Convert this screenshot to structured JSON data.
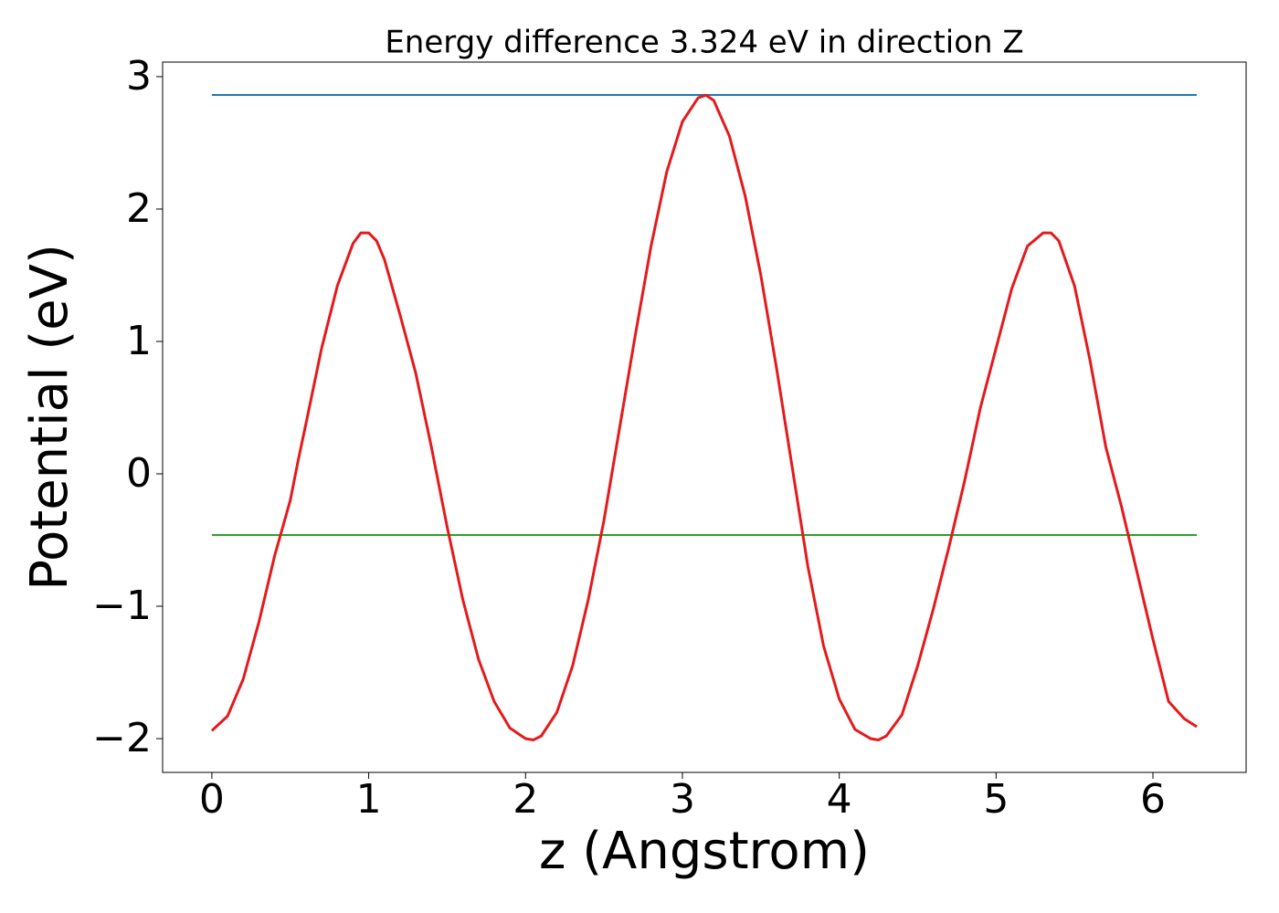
{
  "chart_data": {
    "type": "line",
    "title": "Energy difference 3.324 eV in direction Z",
    "x_label": "z (Angstrom)",
    "y_label": "Potential (eV)",
    "xlim": [
      -0.314,
      6.594
    ],
    "ylim": [
      -2.255,
      3.11
    ],
    "xticks": [
      0,
      1,
      2,
      3,
      4,
      5,
      6
    ],
    "yticks": [
      {
        "value": -2,
        "label": "−2"
      },
      {
        "value": -1,
        "label": "−1"
      },
      0,
      1,
      2,
      3
    ],
    "grid": false,
    "x": [
      0,
      0.1,
      0.2,
      0.3,
      0.4,
      0.5,
      0.55,
      0.6,
      0.7,
      0.8,
      0.9,
      0.95,
      1.0,
      1.05,
      1.1,
      1.2,
      1.3,
      1.4,
      1.5,
      1.6,
      1.7,
      1.8,
      1.9,
      2.0,
      2.05,
      2.1,
      2.2,
      2.3,
      2.4,
      2.5,
      2.6,
      2.7,
      2.8,
      2.9,
      3.0,
      3.1,
      3.15,
      3.2,
      3.3,
      3.4,
      3.5,
      3.6,
      3.7,
      3.8,
      3.9,
      4.0,
      4.1,
      4.2,
      4.25,
      4.3,
      4.4,
      4.5,
      4.6,
      4.7,
      4.8,
      4.9,
      5.0,
      5.1,
      5.2,
      5.3,
      5.35,
      5.4,
      5.5,
      5.6,
      5.7,
      5.8,
      5.9,
      6.0,
      6.1,
      6.2,
      6.28
    ],
    "series": [
      {
        "color": "#e41a1c",
        "values": [
          -1.94,
          -1.83,
          -1.55,
          -1.12,
          -0.62,
          -0.2,
          0.1,
          0.38,
          0.95,
          1.42,
          1.74,
          1.82,
          1.82,
          1.76,
          1.62,
          1.2,
          0.76,
          0.2,
          -0.4,
          -0.95,
          -1.4,
          -1.72,
          -1.92,
          -2.0,
          -2.01,
          -1.98,
          -1.8,
          -1.45,
          -0.95,
          -0.35,
          0.35,
          1.05,
          1.72,
          2.28,
          2.66,
          2.84,
          2.86,
          2.82,
          2.55,
          2.1,
          1.5,
          0.8,
          0.05,
          -0.7,
          -1.3,
          -1.7,
          -1.93,
          -2.0,
          -2.01,
          -1.98,
          -1.82,
          -1.45,
          -1.02,
          -0.55,
          -0.05,
          0.5,
          0.95,
          1.4,
          1.72,
          1.82,
          1.82,
          1.76,
          1.42,
          0.85,
          0.2,
          -0.25,
          -0.75,
          -1.25,
          -1.72,
          -1.85,
          -1.91
        ]
      }
    ],
    "hlines": [
      {
        "y": 2.862,
        "xmin": 0,
        "xmax": 6.28,
        "color": "#1f77b4"
      },
      {
        "y": -0.462,
        "xmin": 0,
        "xmax": 6.28,
        "color": "#2ca02c"
      }
    ]
  }
}
